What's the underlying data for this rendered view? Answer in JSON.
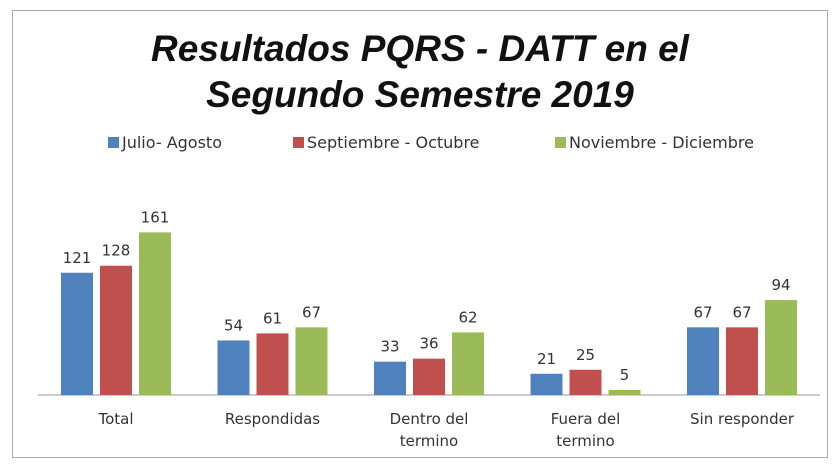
{
  "chart_data": {
    "type": "bar",
    "title": "Resultados PQRS - DATT en el Segundo Semestre 2019",
    "categories": [
      "Total",
      "Respondidas",
      "Dentro del termino",
      "Fuera del termino",
      "Sin responder"
    ],
    "series": [
      {
        "name": "Julio- Agosto",
        "color": "#4f81bd",
        "values": [
          121,
          54,
          33,
          21,
          67
        ]
      },
      {
        "name": "Septiembre - Octubre",
        "color": "#c0504d",
        "values": [
          128,
          61,
          36,
          25,
          67
        ]
      },
      {
        "name": "Noviembre - Diciembre",
        "color": "#9bbb59",
        "values": [
          161,
          67,
          62,
          5,
          94
        ]
      }
    ],
    "legend": "top"
  }
}
